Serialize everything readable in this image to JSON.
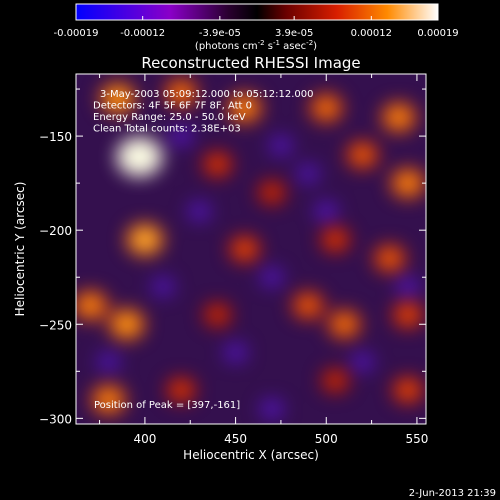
{
  "chart_data": {
    "type": "heatmap",
    "title": "Reconstructed RHESSI Image",
    "xlabel": "Heliocentric X (arcsec)",
    "ylabel": "Heliocentric Y (arcsec)",
    "xlim": [
      362,
      555
    ],
    "ylim": [
      -303,
      -117
    ],
    "x_ticks": [
      400,
      450,
      500,
      550
    ],
    "y_ticks": [
      -150,
      -200,
      -250,
      -300
    ],
    "colorbar": {
      "range": [
        -0.00019,
        0.00019
      ],
      "tick_values": [
        -0.00019,
        -0.00012,
        -3.9e-05,
        3.9e-05,
        0.00012,
        0.00019
      ],
      "tick_labels": [
        "-0.00019",
        "-0.00012",
        "-3.9e-05",
        "3.9e-05",
        "0.00012",
        "0.00019"
      ],
      "units_label": "(photons cm",
      "units_exp1": "-2",
      "units_mid": " s",
      "units_exp2": "-1",
      "units_mid2": " asec",
      "units_exp3": "-2",
      "units_end": ")"
    },
    "annotations": [
      "3-May-2003 05:09:12.000  to 05:12:12.000",
      "Detectors: 4F 5F 6F 7F 8F, Att 0",
      "Energy Range: 25.0 - 50.0 keV",
      "Clean     Total counts: 2.38E+03"
    ],
    "peak_label": "Position of Peak = [397,-161]",
    "peak": [
      397,
      -161
    ],
    "blobs": [
      {
        "x": 397,
        "y": -161,
        "v": 0.00019
      },
      {
        "x": 385,
        "y": -130,
        "v": 0.00011
      },
      {
        "x": 420,
        "y": -127,
        "v": 9e-05
      },
      {
        "x": 455,
        "y": -135,
        "v": 0.0001
      },
      {
        "x": 500,
        "y": -135,
        "v": 9e-05
      },
      {
        "x": 540,
        "y": -140,
        "v": 0.0001
      },
      {
        "x": 440,
        "y": -165,
        "v": 6e-05
      },
      {
        "x": 520,
        "y": -160,
        "v": 8e-05
      },
      {
        "x": 545,
        "y": -175,
        "v": 0.0001
      },
      {
        "x": 470,
        "y": -180,
        "v": 5e-05
      },
      {
        "x": 400,
        "y": -205,
        "v": 0.00012
      },
      {
        "x": 455,
        "y": -210,
        "v": 7e-05
      },
      {
        "x": 505,
        "y": -205,
        "v": 6e-05
      },
      {
        "x": 535,
        "y": -215,
        "v": 8e-05
      },
      {
        "x": 370,
        "y": -240,
        "v": 0.0001
      },
      {
        "x": 390,
        "y": -250,
        "v": 0.00011
      },
      {
        "x": 440,
        "y": -245,
        "v": 5e-05
      },
      {
        "x": 490,
        "y": -240,
        "v": 8e-05
      },
      {
        "x": 510,
        "y": -250,
        "v": 9e-05
      },
      {
        "x": 545,
        "y": -245,
        "v": 7e-05
      },
      {
        "x": 380,
        "y": -290,
        "v": 0.0001
      },
      {
        "x": 420,
        "y": -285,
        "v": 6e-05
      },
      {
        "x": 505,
        "y": -280,
        "v": 5e-05
      },
      {
        "x": 545,
        "y": -285,
        "v": 7e-05
      }
    ],
    "dips": [
      {
        "x": 420,
        "y": -150,
        "v": -8e-05
      },
      {
        "x": 475,
        "y": -155,
        "v": -6e-05
      },
      {
        "x": 490,
        "y": -170,
        "v": -5e-05
      },
      {
        "x": 430,
        "y": -190,
        "v": -6e-05
      },
      {
        "x": 500,
        "y": -190,
        "v": -8e-05
      },
      {
        "x": 470,
        "y": -225,
        "v": -6e-05
      },
      {
        "x": 545,
        "y": -230,
        "v": -7e-05
      },
      {
        "x": 410,
        "y": -230,
        "v": -5e-05
      },
      {
        "x": 450,
        "y": -265,
        "v": -7e-05
      },
      {
        "x": 520,
        "y": -270,
        "v": -6e-05
      },
      {
        "x": 470,
        "y": -295,
        "v": -8e-05
      },
      {
        "x": 380,
        "y": -270,
        "v": -5e-05
      }
    ]
  },
  "footer": {
    "timestamp": "2-Jun-2013 21:39"
  }
}
